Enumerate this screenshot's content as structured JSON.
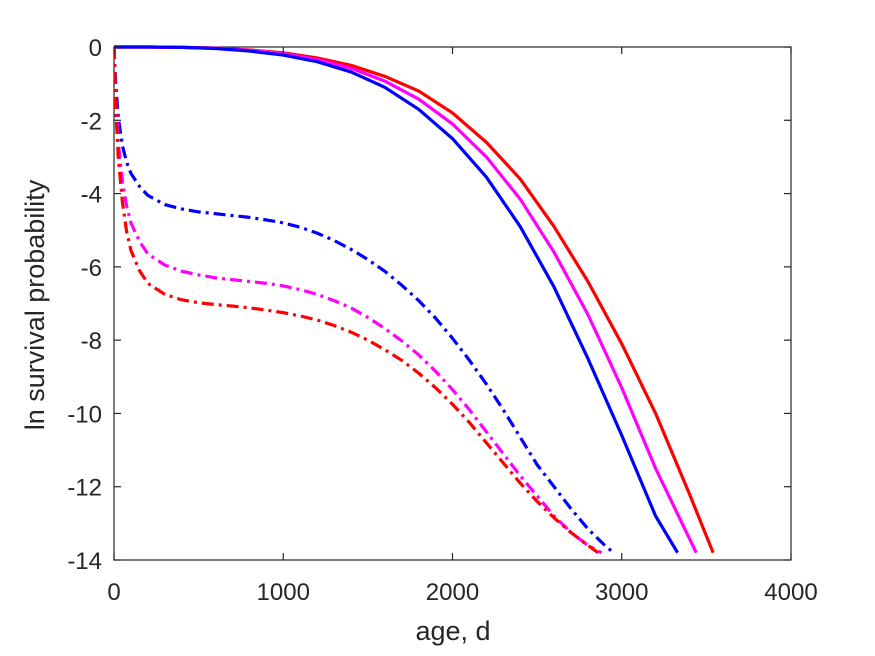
{
  "chart_data": {
    "type": "line",
    "title": "",
    "xlabel": "age, d",
    "ylabel": "ln survival probability",
    "xlim": [
      0,
      4000
    ],
    "ylim": [
      -14,
      0
    ],
    "xticks": [
      0,
      1000,
      2000,
      3000,
      4000
    ],
    "yticks": [
      0,
      -2,
      -4,
      -6,
      -8,
      -10,
      -12,
      -14
    ],
    "grid": false,
    "legend": "none",
    "series": [
      {
        "color": "#ff0000",
        "style": "solid",
        "x": [
          0,
          200,
          400,
          600,
          800,
          1000,
          1200,
          1400,
          1600,
          1800,
          2000,
          2200,
          2400,
          2600,
          2800,
          3000,
          3200,
          3400,
          3540
        ],
        "y": [
          0,
          0,
          -0.01,
          -0.03,
          -0.08,
          -0.16,
          -0.3,
          -0.5,
          -0.8,
          -1.2,
          -1.8,
          -2.6,
          -3.6,
          -4.9,
          -6.4,
          -8.1,
          -10.0,
          -12.2,
          -13.8
        ]
      },
      {
        "color": "#ff00ff",
        "style": "solid",
        "x": [
          0,
          200,
          400,
          600,
          800,
          1000,
          1200,
          1400,
          1600,
          1800,
          2000,
          2200,
          2400,
          2600,
          2800,
          3000,
          3200,
          3440
        ],
        "y": [
          0,
          0,
          -0.01,
          -0.03,
          -0.09,
          -0.18,
          -0.34,
          -0.58,
          -0.93,
          -1.42,
          -2.1,
          -3.0,
          -4.15,
          -5.6,
          -7.3,
          -9.3,
          -11.5,
          -13.8
        ]
      },
      {
        "color": "#0000ff",
        "style": "solid",
        "x": [
          0,
          200,
          400,
          600,
          800,
          1000,
          1200,
          1400,
          1600,
          1800,
          2000,
          2200,
          2400,
          2600,
          2800,
          3000,
          3200,
          3330
        ],
        "y": [
          0,
          0,
          -0.01,
          -0.04,
          -0.11,
          -0.22,
          -0.4,
          -0.68,
          -1.1,
          -1.7,
          -2.5,
          -3.55,
          -4.9,
          -6.55,
          -8.5,
          -10.6,
          -12.8,
          -13.8
        ]
      },
      {
        "color": "#0000ff",
        "style": "dashdot",
        "x": [
          0,
          10,
          25,
          50,
          75,
          100,
          150,
          200,
          300,
          400,
          500,
          600,
          700,
          800,
          900,
          1000,
          1100,
          1200,
          1300,
          1400,
          1500,
          1600,
          1700,
          1800,
          1900,
          2000,
          2100,
          2200,
          2300,
          2400,
          2500,
          2600,
          2700,
          2800,
          2900,
          2950
        ],
        "y": [
          0,
          -1.0,
          -1.9,
          -2.7,
          -3.15,
          -3.45,
          -3.8,
          -4.05,
          -4.3,
          -4.42,
          -4.5,
          -4.55,
          -4.6,
          -4.65,
          -4.72,
          -4.8,
          -4.92,
          -5.08,
          -5.28,
          -5.52,
          -5.8,
          -6.12,
          -6.5,
          -6.92,
          -7.4,
          -7.95,
          -8.55,
          -9.2,
          -9.9,
          -10.65,
          -11.4,
          -12.0,
          -12.6,
          -13.15,
          -13.6,
          -13.8
        ]
      },
      {
        "color": "#ff00ff",
        "style": "dashdot",
        "x": [
          0,
          10,
          25,
          50,
          75,
          100,
          150,
          200,
          300,
          400,
          500,
          600,
          700,
          800,
          900,
          1000,
          1100,
          1200,
          1300,
          1400,
          1500,
          1600,
          1700,
          1800,
          1900,
          2000,
          2100,
          2200,
          2300,
          2400,
          2500,
          2600,
          2700,
          2800,
          2880
        ],
        "y": [
          0,
          -1.4,
          -2.6,
          -3.7,
          -4.35,
          -4.8,
          -5.3,
          -5.65,
          -5.95,
          -6.12,
          -6.22,
          -6.3,
          -6.35,
          -6.4,
          -6.45,
          -6.52,
          -6.62,
          -6.75,
          -6.92,
          -7.12,
          -7.38,
          -7.68,
          -8.02,
          -8.4,
          -8.85,
          -9.35,
          -9.9,
          -10.5,
          -11.1,
          -11.7,
          -12.25,
          -12.8,
          -13.25,
          -13.6,
          -13.8
        ]
      },
      {
        "color": "#ff0000",
        "style": "dashdot",
        "x": [
          0,
          10,
          25,
          50,
          75,
          100,
          150,
          200,
          300,
          400,
          500,
          600,
          700,
          800,
          900,
          1000,
          1100,
          1200,
          1300,
          1400,
          1500,
          1600,
          1700,
          1800,
          1900,
          2000,
          2100,
          2200,
          2300,
          2400,
          2500,
          2600,
          2700,
          2800,
          2860
        ],
        "y": [
          0,
          -1.6,
          -3.0,
          -4.25,
          -5.05,
          -5.55,
          -6.1,
          -6.45,
          -6.75,
          -6.9,
          -6.98,
          -7.03,
          -7.07,
          -7.12,
          -7.18,
          -7.25,
          -7.34,
          -7.45,
          -7.6,
          -7.78,
          -8.0,
          -8.26,
          -8.55,
          -8.9,
          -9.3,
          -9.75,
          -10.25,
          -10.8,
          -11.35,
          -11.9,
          -12.4,
          -12.85,
          -13.25,
          -13.6,
          -13.8
        ]
      }
    ]
  }
}
